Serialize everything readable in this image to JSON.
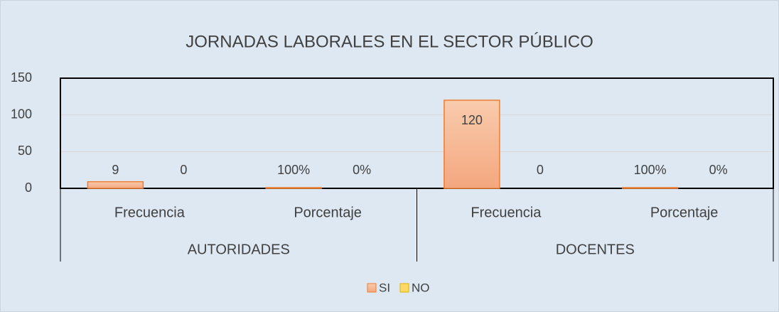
{
  "chart_data": {
    "type": "bar",
    "title": "JORNADAS LABORALES EN EL SECTOR PÚBLICO",
    "categories": [
      "Frecuencia",
      "Porcentaje",
      "Frecuencia",
      "Porcentaje"
    ],
    "groups": [
      {
        "name": "AUTORIDADES",
        "span": 2
      },
      {
        "name": "DOCENTES",
        "span": 2
      }
    ],
    "series": [
      {
        "name": "SI",
        "color": "#f4a77e",
        "values": [
          9,
          1,
          120,
          1
        ],
        "value_labels": [
          "9",
          "100%",
          "120",
          "100%"
        ]
      },
      {
        "name": "NO",
        "color": "#ffd966",
        "values": [
          0,
          0,
          0,
          0
        ],
        "value_labels": [
          "0",
          "0%",
          "0",
          "0%"
        ]
      }
    ],
    "ylim": [
      0,
      150
    ],
    "yticks": [
      0,
      50,
      100,
      150
    ],
    "grid": true,
    "legend": "bottom"
  }
}
